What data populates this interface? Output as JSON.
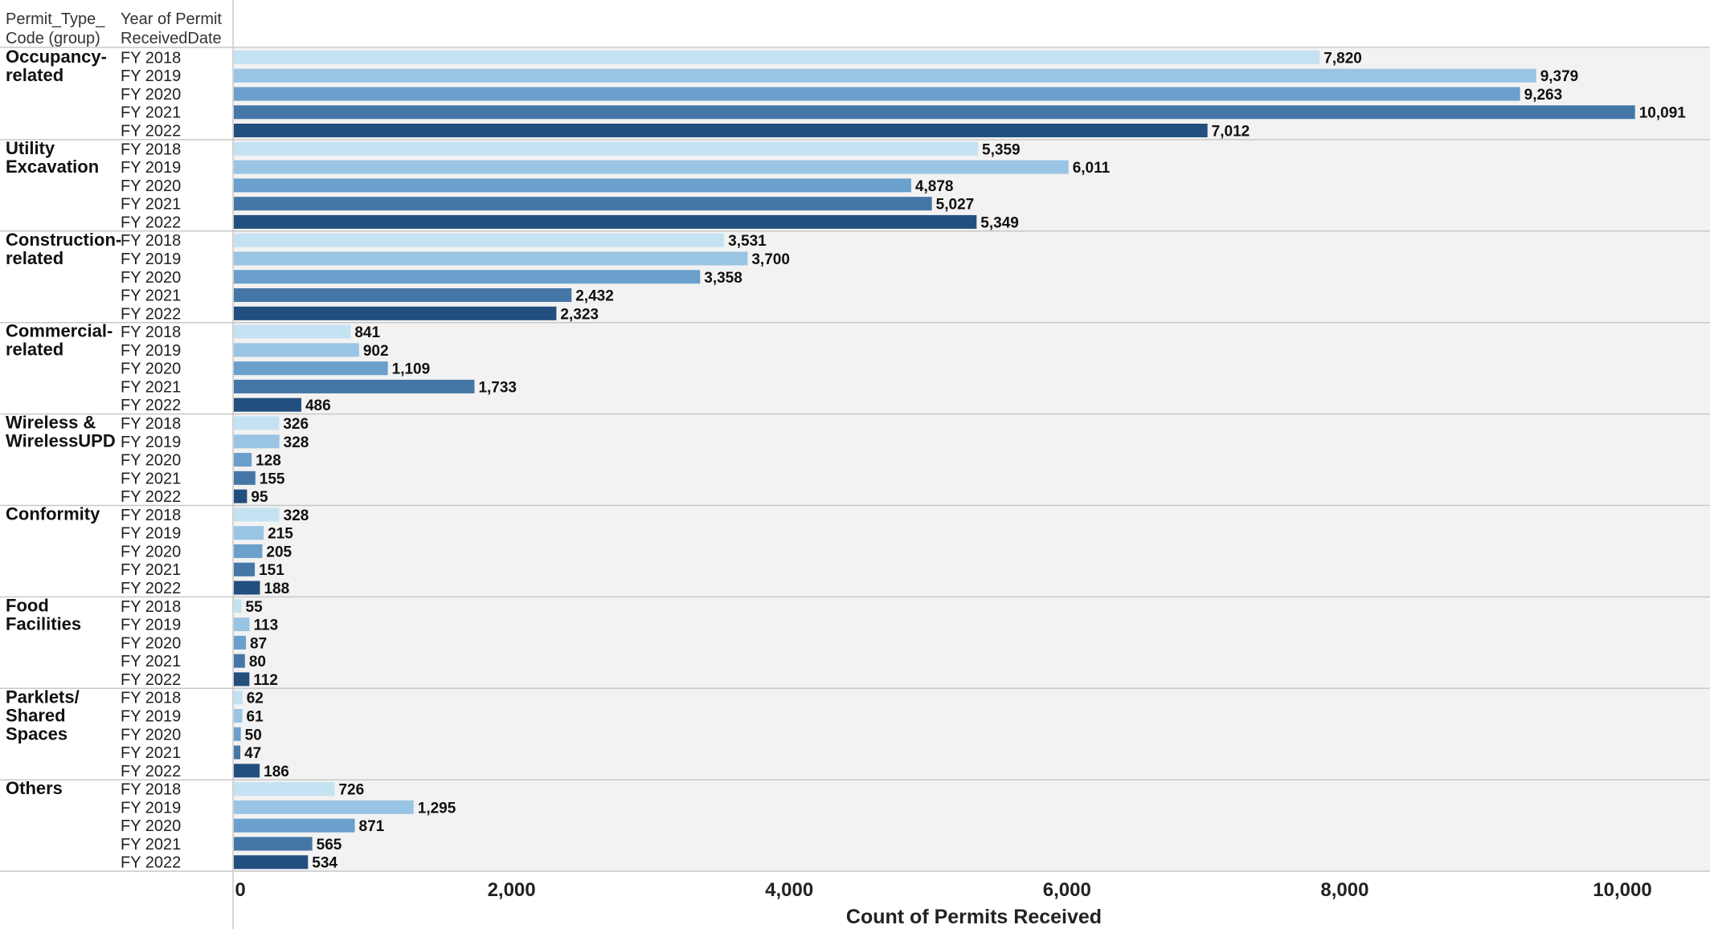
{
  "chart_data": {
    "type": "bar",
    "orientation": "horizontal",
    "row_headers": [
      "Permit_Type_ Code (group)",
      "Year of Permit ReceivedDate"
    ],
    "years": [
      "FY 2018",
      "FY 2019",
      "FY 2020",
      "FY 2021",
      "FY 2022"
    ],
    "colors": [
      "#c5e2f3",
      "#9ac4e3",
      "#6b9fcc",
      "#4577a6",
      "#234f7f"
    ],
    "groups": [
      {
        "name": "Occupancy-related",
        "lines": [
          "Occupancy-",
          "related"
        ],
        "values": [
          7820,
          9379,
          9263,
          10091,
          7012
        ],
        "labels": [
          "7,820",
          "9,379",
          "9,263",
          "10,091",
          "7,012"
        ]
      },
      {
        "name": "Utility Excavation",
        "lines": [
          "Utility",
          "Excavation"
        ],
        "values": [
          5359,
          6011,
          4878,
          5027,
          5349
        ],
        "labels": [
          "5,359",
          "6,011",
          "4,878",
          "5,027",
          "5,349"
        ]
      },
      {
        "name": "Construction-related",
        "lines": [
          "Construction-",
          "related"
        ],
        "values": [
          3531,
          3700,
          3358,
          2432,
          2323
        ],
        "labels": [
          "3,531",
          "3,700",
          "3,358",
          "2,432",
          "2,323"
        ]
      },
      {
        "name": "Commercial-related",
        "lines": [
          "Commercial-",
          "related"
        ],
        "values": [
          841,
          902,
          1109,
          1733,
          486
        ],
        "labels": [
          "841",
          "902",
          "1,109",
          "1,733",
          "486"
        ]
      },
      {
        "name": "Wireless & WirelessUPD",
        "lines": [
          "Wireless &",
          "WirelessUPD"
        ],
        "values": [
          326,
          328,
          128,
          155,
          95
        ],
        "labels": [
          "326",
          "328",
          "128",
          "155",
          "95"
        ]
      },
      {
        "name": "Conformity",
        "lines": [
          "Conformity"
        ],
        "values": [
          328,
          215,
          205,
          151,
          188
        ],
        "labels": [
          "328",
          "215",
          "205",
          "151",
          "188"
        ]
      },
      {
        "name": "Food Facilities",
        "lines": [
          "Food",
          "Facilities"
        ],
        "values": [
          55,
          113,
          87,
          80,
          112
        ],
        "labels": [
          "55",
          "113",
          "87",
          "80",
          "112"
        ]
      },
      {
        "name": "Parklets/ Shared Spaces",
        "lines": [
          "Parklets/",
          "Shared",
          "Spaces"
        ],
        "values": [
          62,
          61,
          50,
          47,
          186
        ],
        "labels": [
          "62",
          "61",
          "50",
          "47",
          "186"
        ]
      },
      {
        "name": "Others",
        "lines": [
          "Others"
        ],
        "values": [
          726,
          1295,
          871,
          565,
          534
        ],
        "labels": [
          "726",
          "1,295",
          "871",
          "565",
          "534"
        ]
      }
    ],
    "xlabel": "Count of Permits Received",
    "xlim": [
      0,
      10600
    ],
    "xticks": [
      0,
      2000,
      4000,
      6000,
      8000,
      10000
    ],
    "xtick_labels": [
      "0",
      "2,000",
      "4,000",
      "6,000",
      "8,000",
      "10,000"
    ],
    "grid": false,
    "plot_background": "#f2f2f2",
    "divider_color": "#c8c8c8"
  }
}
